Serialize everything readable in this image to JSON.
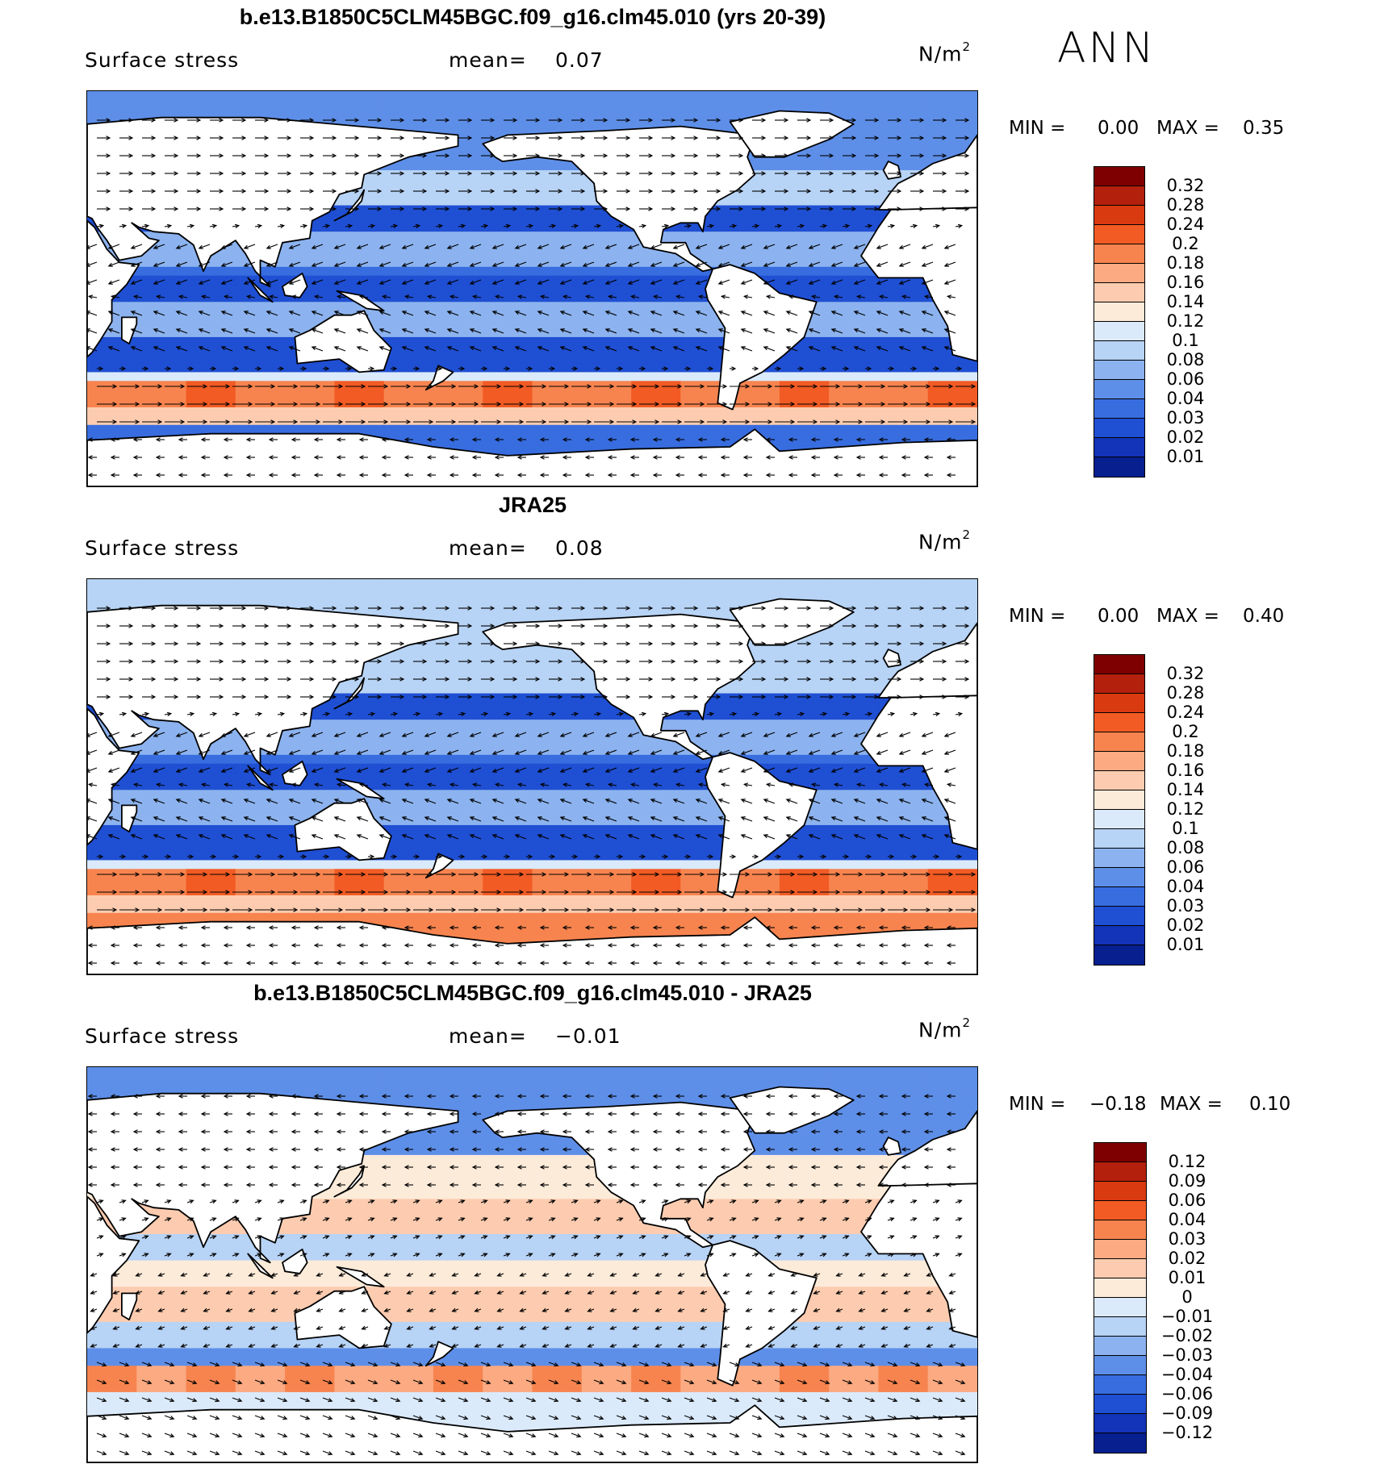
{
  "season": "ANN",
  "panels": [
    {
      "title": "b.e13.B1850C5CLM45BGC.f09_g16.clm45.010 (yrs 20-39)",
      "variable": "Surface stress",
      "mean_label": "mean=",
      "mean_value": "0.07",
      "unit": "N/m",
      "unit_exp": "2",
      "min_label": "MIN =",
      "min_value": "0.00",
      "max_label": "MAX =",
      "max_value": "0.35",
      "colorbar_levels": [
        "0.32",
        "0.28",
        "0.24",
        "0.2",
        "0.18",
        "0.16",
        "0.14",
        "0.12",
        "0.1",
        "0.08",
        "0.06",
        "0.04",
        "0.03",
        "0.02",
        "0.01"
      ],
      "colorbar_colors": [
        "#7f0000",
        "#b3200c",
        "#d93a0f",
        "#f25b24",
        "#f7844f",
        "#fbaa82",
        "#fdccb0",
        "#fdebd9",
        "#dbeafb",
        "#b7d3f5",
        "#8cb3ef",
        "#5e8fe8",
        "#386de0",
        "#1f4fd3",
        "#1333b8",
        "#071f8f"
      ]
    },
    {
      "title": "JRA25",
      "variable": "Surface stress",
      "mean_label": "mean=",
      "mean_value": "0.08",
      "unit": "N/m",
      "unit_exp": "2",
      "min_label": "MIN =",
      "min_value": "0.00",
      "max_label": "MAX =",
      "max_value": "0.40",
      "colorbar_levels": [
        "0.32",
        "0.28",
        "0.24",
        "0.2",
        "0.18",
        "0.16",
        "0.14",
        "0.12",
        "0.1",
        "0.08",
        "0.06",
        "0.04",
        "0.03",
        "0.02",
        "0.01"
      ],
      "colorbar_colors": [
        "#7f0000",
        "#b3200c",
        "#d93a0f",
        "#f25b24",
        "#f7844f",
        "#fbaa82",
        "#fdccb0",
        "#fdebd9",
        "#dbeafb",
        "#b7d3f5",
        "#8cb3ef",
        "#5e8fe8",
        "#386de0",
        "#1f4fd3",
        "#1333b8",
        "#071f8f"
      ]
    },
    {
      "title": "b.e13.B1850C5CLM45BGC.f09_g16.clm45.010 - JRA25",
      "variable": "Surface stress",
      "mean_label": "mean=",
      "mean_value": "−0.01",
      "unit": "N/m",
      "unit_exp": "2",
      "min_label": "MIN =",
      "min_value": "−0.18",
      "max_label": "MAX =",
      "max_value": "0.10",
      "colorbar_levels": [
        "0.12",
        "0.09",
        "0.06",
        "0.04",
        "0.03",
        "0.02",
        "0.01",
        "0",
        "−0.01",
        "−0.02",
        "−0.03",
        "−0.04",
        "−0.06",
        "−0.09",
        "−0.12"
      ],
      "colorbar_colors": [
        "#7f0000",
        "#b3200c",
        "#d93a0f",
        "#f25b24",
        "#f7844f",
        "#fbaa82",
        "#fdccb0",
        "#fdebd9",
        "#dbeafb",
        "#b7d3f5",
        "#8cb3ef",
        "#5e8fe8",
        "#386de0",
        "#1f4fd3",
        "#1333b8",
        "#071f8f"
      ]
    }
  ],
  "chart_data": [
    {
      "type": "heatmap",
      "title": "b.e13.B1850C5CLM45BGC.f09_g16.clm45.010 (yrs 20-39)",
      "variable": "Surface stress",
      "units": "N/m2",
      "mean": 0.07,
      "min": 0.0,
      "max": 0.35,
      "levels": [
        0.01,
        0.02,
        0.03,
        0.04,
        0.06,
        0.08,
        0.1,
        0.12,
        0.14,
        0.16,
        0.18,
        0.2,
        0.24,
        0.28,
        0.32
      ],
      "zonal_pattern": [
        {
          "lat": 60,
          "value": 0.08
        },
        {
          "lat": 45,
          "value": 0.1
        },
        {
          "lat": 30,
          "value": 0.04
        },
        {
          "lat": 15,
          "value": 0.08
        },
        {
          "lat": 0,
          "value": 0.03
        },
        {
          "lat": -15,
          "value": 0.08
        },
        {
          "lat": -30,
          "value": 0.03
        },
        {
          "lat": -50,
          "value": 0.24
        },
        {
          "lat": -62,
          "value": 0.12
        }
      ]
    },
    {
      "type": "heatmap",
      "title": "JRA25",
      "variable": "Surface stress",
      "units": "N/m2",
      "mean": 0.08,
      "min": 0.0,
      "max": 0.4,
      "levels": [
        0.01,
        0.02,
        0.03,
        0.04,
        0.06,
        0.08,
        0.1,
        0.12,
        0.14,
        0.16,
        0.18,
        0.2,
        0.24,
        0.28,
        0.32
      ],
      "zonal_pattern": [
        {
          "lat": 60,
          "value": 0.12
        },
        {
          "lat": 45,
          "value": 0.1
        },
        {
          "lat": 30,
          "value": 0.05
        },
        {
          "lat": 15,
          "value": 0.08
        },
        {
          "lat": 0,
          "value": 0.04
        },
        {
          "lat": -15,
          "value": 0.08
        },
        {
          "lat": -30,
          "value": 0.04
        },
        {
          "lat": -50,
          "value": 0.24
        },
        {
          "lat": -62,
          "value": 0.14
        }
      ]
    },
    {
      "type": "heatmap",
      "title": "b.e13.B1850C5CLM45BGC.f09_g16.clm45.010 - JRA25",
      "variable": "Surface stress",
      "units": "N/m2",
      "mean": -0.01,
      "min": -0.18,
      "max": 0.1,
      "levels": [
        -0.12,
        -0.09,
        -0.06,
        -0.04,
        -0.03,
        -0.02,
        -0.01,
        0,
        0.01,
        0.02,
        0.03,
        0.04,
        0.06,
        0.09,
        0.12
      ],
      "zonal_pattern": [
        {
          "lat": 55,
          "value": -0.03
        },
        {
          "lat": 40,
          "value": 0.005
        },
        {
          "lat": 25,
          "value": 0.01
        },
        {
          "lat": 10,
          "value": -0.01
        },
        {
          "lat": 0,
          "value": 0.005
        },
        {
          "lat": -15,
          "value": 0.01
        },
        {
          "lat": -35,
          "value": -0.02
        },
        {
          "lat": -50,
          "value": 0.02
        },
        {
          "lat": -60,
          "value": -0.01
        }
      ]
    }
  ]
}
